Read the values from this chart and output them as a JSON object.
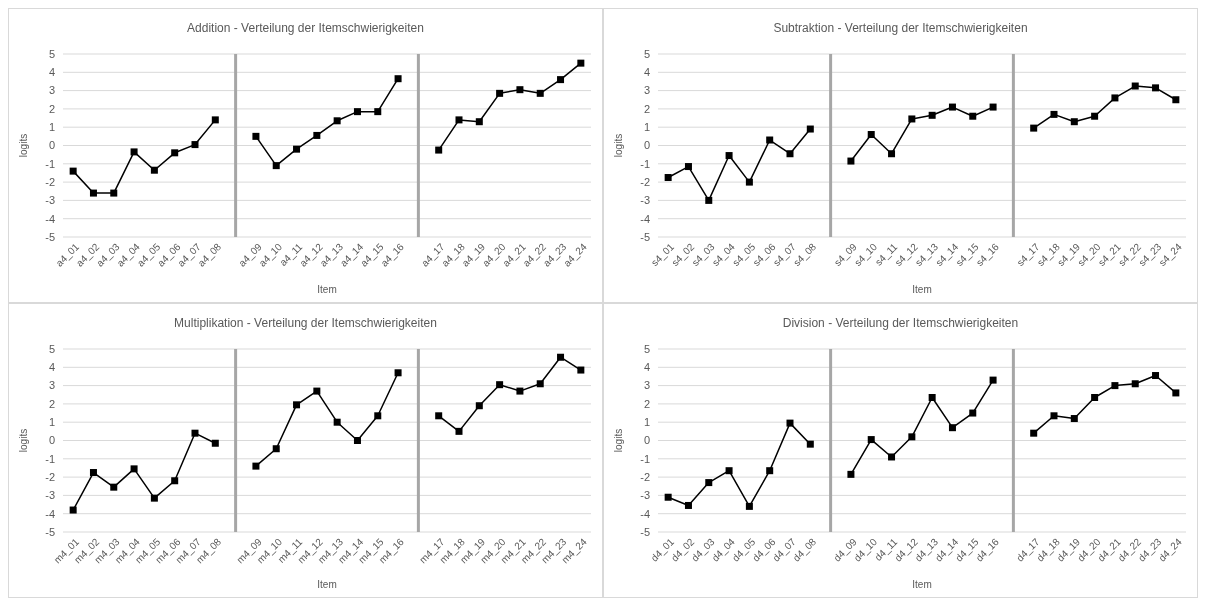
{
  "chart_data": [
    {
      "type": "line",
      "title": "Addition - Verteilung der Itemschwierigkeiten",
      "xlabel": "Item",
      "ylabel": "logits",
      "categories": [
        "a4_01",
        "a4_02",
        "a4_03",
        "a4_04",
        "a4_05",
        "a4_06",
        "a4_07",
        "a4_08",
        null,
        "a4_09",
        "a4_10",
        "a4_11",
        "a4_12",
        "a4_13",
        "a4_14",
        "a4_15",
        "a4_16",
        null,
        "a4_17",
        "a4_18",
        "a4_19",
        "a4_20",
        "a4_21",
        "a4_22",
        "a4_23",
        "a4_24"
      ],
      "series": [
        {
          "color": "#000000",
          "values": [
            -1.4,
            -2.6,
            -2.6,
            -0.35,
            -1.35,
            -0.4,
            0.05,
            1.4,
            null,
            0.5,
            -1.1,
            -0.2,
            0.55,
            1.35,
            1.85,
            1.85,
            3.65,
            null,
            -0.25,
            1.4,
            1.3,
            2.85,
            3.05,
            2.85,
            3.6,
            4.5
          ]
        }
      ],
      "ylim": [
        -5,
        5
      ],
      "yticks": [
        -5,
        -4,
        -3,
        -2,
        -1,
        0,
        1,
        2,
        3,
        4,
        5
      ],
      "grid": "y",
      "marker": "square",
      "line_style": "solid"
    },
    {
      "type": "line",
      "title": "Subtraktion - Verteilung der Itemschwierigkeiten",
      "xlabel": "Item",
      "ylabel": "logits",
      "categories": [
        "s4_01",
        "s4_02",
        "s4_03",
        "s4_04",
        "s4_05",
        "s4_06",
        "s4_07",
        "s4_08",
        null,
        "s4_09",
        "s4_10",
        "s4_11",
        "s4_12",
        "s4_13",
        "s4_14",
        "s4_15",
        "s4_16",
        null,
        "s4_17",
        "s4_18",
        "s4_19",
        "s4_20",
        "s4_21",
        "s4_22",
        "s4_23",
        "s4_24"
      ],
      "series": [
        {
          "color": "#000000",
          "values": [
            -1.75,
            -1.15,
            -3.0,
            -0.55,
            -2.0,
            0.3,
            -0.45,
            0.9,
            null,
            -0.85,
            0.6,
            -0.45,
            1.45,
            1.65,
            2.1,
            1.6,
            2.1,
            null,
            0.95,
            1.7,
            1.3,
            1.6,
            2.6,
            3.25,
            3.15,
            2.5
          ]
        }
      ],
      "ylim": [
        -5,
        5
      ],
      "yticks": [
        -5,
        -4,
        -3,
        -2,
        -1,
        0,
        1,
        2,
        3,
        4,
        5
      ],
      "grid": "y",
      "marker": "square",
      "line_style": "solid"
    },
    {
      "type": "line",
      "title": "Multiplikation - Verteilung der Itemschwierigkeiten",
      "xlabel": "Item",
      "ylabel": "logits",
      "categories": [
        "m4_01",
        "m4_02",
        "m4_03",
        "m4_04",
        "m4_05",
        "m4_06",
        "m4_07",
        "m4_08",
        null,
        "m4_09",
        "m4_10",
        "m4_11",
        "m4_12",
        "m4_13",
        "m4_14",
        "m4_15",
        "m4_16",
        null,
        "m4_17",
        "m4_18",
        "m4_19",
        "m4_20",
        "m4_21",
        "m4_22",
        "m4_23",
        "m4_24"
      ],
      "series": [
        {
          "color": "#000000",
          "values": [
            -3.8,
            -1.75,
            -2.55,
            -1.55,
            -3.15,
            -2.2,
            0.4,
            -0.15,
            null,
            -1.4,
            -0.45,
            1.95,
            2.7,
            1.0,
            0.0,
            1.35,
            3.7,
            null,
            1.35,
            0.5,
            1.9,
            3.05,
            2.7,
            3.1,
            4.55,
            3.85
          ]
        }
      ],
      "ylim": [
        -5,
        5
      ],
      "yticks": [
        -5,
        -4,
        -3,
        -2,
        -1,
        0,
        1,
        2,
        3,
        4,
        5
      ],
      "grid": "y",
      "marker": "square",
      "line_style": "solid"
    },
    {
      "type": "line",
      "title": "Division - Verteilung der Itemschwierigkeiten",
      "xlabel": "Item",
      "ylabel": "logits",
      "categories": [
        "d4_01",
        "d4_02",
        "d4_03",
        "d4_04",
        "d4_05",
        "d4_06",
        "d4_07",
        "d4_08",
        null,
        "d4_09",
        "d4_10",
        "d4_11",
        "d4_12",
        "d4_13",
        "d4_14",
        "d4_15",
        "d4_16",
        null,
        "d4_17",
        "d4_18",
        "d4_19",
        "d4_20",
        "d4_21",
        "d4_22",
        "d4_23",
        "d4_24"
      ],
      "series": [
        {
          "color": "#000000",
          "values": [
            -3.1,
            -3.55,
            -2.3,
            -1.65,
            -3.6,
            -1.65,
            0.95,
            -0.2,
            null,
            -1.85,
            0.05,
            -0.9,
            0.2,
            2.35,
            0.7,
            1.5,
            3.3,
            null,
            0.4,
            1.35,
            1.2,
            2.35,
            3.0,
            3.1,
            3.55,
            2.6
          ]
        }
      ],
      "ylim": [
        -5,
        5
      ],
      "yticks": [
        -5,
        -4,
        -3,
        -2,
        -1,
        0,
        1,
        2,
        3,
        4,
        5
      ],
      "grid": "y",
      "marker": "square",
      "line_style": "solid"
    }
  ]
}
